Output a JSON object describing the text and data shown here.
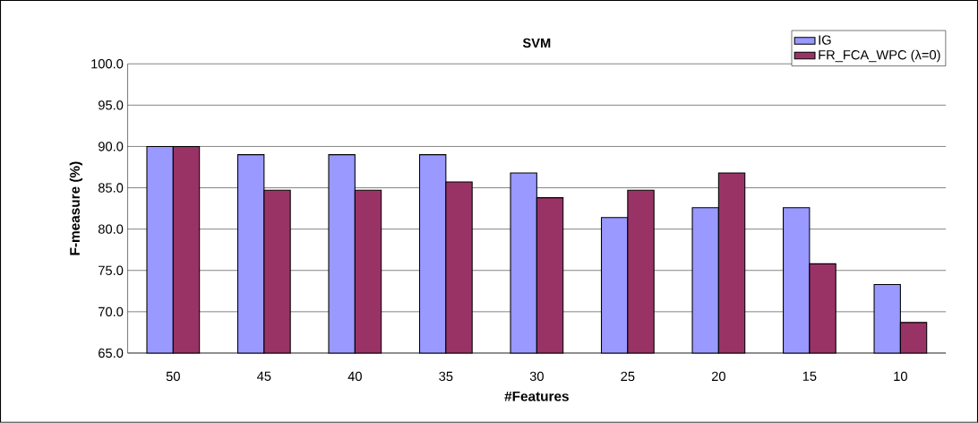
{
  "chart_data": {
    "type": "bar",
    "title": "SVM",
    "xlabel": "#Features",
    "ylabel": "F-measure (%)",
    "categories": [
      "50",
      "45",
      "40",
      "35",
      "30",
      "25",
      "20",
      "15",
      "10"
    ],
    "series": [
      {
        "name": "IG",
        "color": "#9999ff",
        "values": [
          90.0,
          89.0,
          89.0,
          89.0,
          86.8,
          81.4,
          82.6,
          82.6,
          73.3
        ]
      },
      {
        "name": "FR_FCA_WPC (λ=0)",
        "color": "#993366",
        "values": [
          90.0,
          84.7,
          84.7,
          85.7,
          83.8,
          84.7,
          86.8,
          75.8,
          68.7
        ]
      }
    ],
    "ylim": [
      65,
      100
    ],
    "yticks": [
      {
        "value": 65,
        "label": "65.0"
      },
      {
        "value": 70,
        "label": "70.0"
      },
      {
        "value": 75,
        "label": "75.0"
      },
      {
        "value": 80,
        "label": "80.0"
      },
      {
        "value": 85,
        "label": "85.0"
      },
      {
        "value": 90,
        "label": "90.0"
      },
      {
        "value": 95,
        "label": "95.0"
      },
      {
        "value": 100,
        "label": "100.0"
      }
    ],
    "grid": "y",
    "legend": "top right"
  }
}
